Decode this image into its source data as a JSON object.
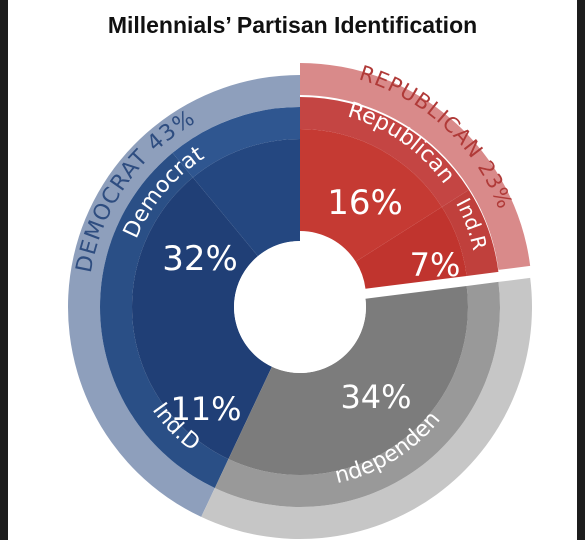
{
  "chart_data": {
    "type": "pie",
    "title": "Millennials’ Partisan Identification",
    "outer_ring": [
      {
        "label": "DEMOCRAT 43%",
        "value": 43,
        "color": "#8e9fbc"
      },
      {
        "label": "REPUBLICAN 23%",
        "value": 23,
        "color": "#d98a8a"
      },
      {
        "label": "",
        "value": 34,
        "color": "#c6c6c6"
      }
    ],
    "middle_ring": [
      {
        "label": "Democrat",
        "value": 32,
        "color": "#2a4f86"
      },
      {
        "label": "Ind.D",
        "value": 11,
        "color": "#2f5690"
      },
      {
        "label": "Independent",
        "value": 34,
        "color": "#999999"
      },
      {
        "label": "Ind.R",
        "value": 7,
        "color": "#c0403c"
      },
      {
        "label": "Republican",
        "value": 16,
        "color": "#c44543"
      }
    ],
    "inner_ring": [
      {
        "label": "32%",
        "value": 32,
        "color": "#203f76"
      },
      {
        "label": "11%",
        "value": 11,
        "color": "#244780"
      },
      {
        "label": "34%",
        "value": 34,
        "color": "#7c7c7c"
      },
      {
        "label": "7%",
        "value": 7,
        "color": "#c0342e"
      },
      {
        "label": "16%",
        "value": 16,
        "color": "#c53a33"
      }
    ]
  }
}
